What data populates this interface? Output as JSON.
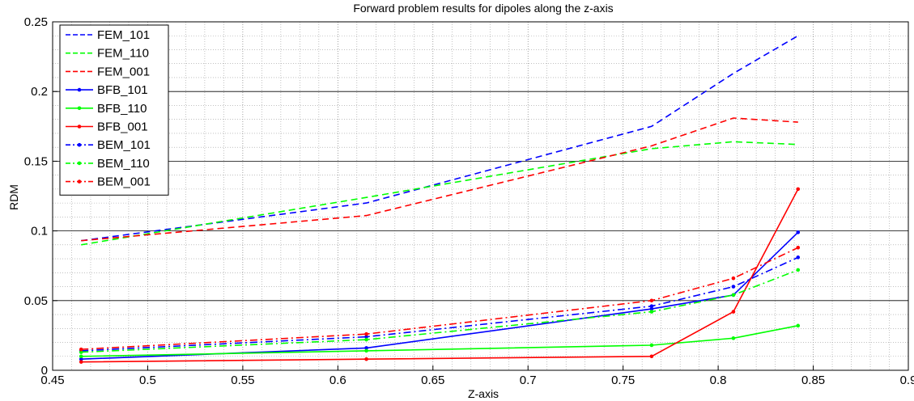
{
  "chart_data": {
    "type": "line",
    "title": "Forward problem results for dipoles along the z-axis",
    "xlabel": "Z-axis",
    "ylabel": "RDM",
    "xlim": [
      0.45,
      0.9
    ],
    "ylim": [
      0,
      0.25
    ],
    "xticks": [
      "0.45",
      "0.5",
      "0.55",
      "0.6",
      "0.65",
      "0.7",
      "0.75",
      "0.8",
      "0.85",
      "0.9"
    ],
    "yticks": [
      "0",
      "0.05",
      "0.1",
      "0.15",
      "0.2",
      "0.25"
    ],
    "grid": "major solid on y, minor dotted",
    "legend_position": "top-left",
    "x": [
      0.465,
      0.615,
      0.765,
      0.808,
      0.842
    ],
    "series": [
      {
        "name": "FEM_101",
        "color": "#0000ff",
        "style": "dashed",
        "marker": "none",
        "values": [
          0.093,
          0.12,
          0.175,
          0.213,
          0.24
        ]
      },
      {
        "name": "FEM_110",
        "color": "#00ff00",
        "style": "dashed",
        "marker": "none",
        "values": [
          0.09,
          0.124,
          0.159,
          0.164,
          0.162
        ]
      },
      {
        "name": "FEM_001",
        "color": "#ff0000",
        "style": "dashed",
        "marker": "none",
        "values": [
          0.093,
          0.111,
          0.161,
          0.181,
          0.178
        ]
      },
      {
        "name": "BFB_101",
        "color": "#0000ff",
        "style": "solid",
        "marker": "dot",
        "values": [
          0.008,
          0.016,
          0.044,
          0.054,
          0.099
        ]
      },
      {
        "name": "BFB_110",
        "color": "#00ff00",
        "style": "solid",
        "marker": "dot",
        "values": [
          0.01,
          0.014,
          0.018,
          0.023,
          0.032
        ]
      },
      {
        "name": "BFB_001",
        "color": "#ff0000",
        "style": "solid",
        "marker": "dot",
        "values": [
          0.006,
          0.008,
          0.01,
          0.042,
          0.13
        ]
      },
      {
        "name": "BEM_101",
        "color": "#0000ff",
        "style": "dashdot",
        "marker": "dot",
        "values": [
          0.014,
          0.024,
          0.046,
          0.06,
          0.081
        ]
      },
      {
        "name": "BEM_110",
        "color": "#00ff00",
        "style": "dashdot",
        "marker": "dot",
        "values": [
          0.013,
          0.022,
          0.042,
          0.054,
          0.072
        ]
      },
      {
        "name": "BEM_001",
        "color": "#ff0000",
        "style": "dashdot",
        "marker": "dot",
        "values": [
          0.015,
          0.026,
          0.05,
          0.066,
          0.088
        ]
      }
    ]
  }
}
